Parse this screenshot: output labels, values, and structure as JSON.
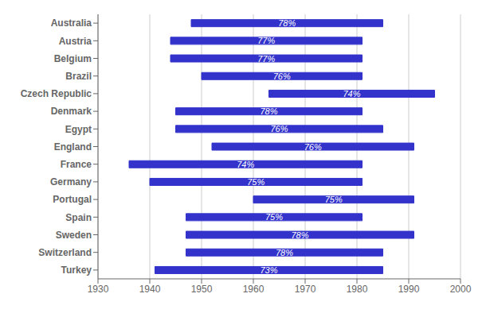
{
  "chart_data": {
    "type": "bar",
    "orientation": "horizontal",
    "categories": [
      "Australia",
      "Austria",
      "Belgium",
      "Brazil",
      "Czech Republic",
      "Denmark",
      "Egypt",
      "England",
      "France",
      "Germany",
      "Portugal",
      "Spain",
      "Sweden",
      "Switzerland",
      "Turkey"
    ],
    "starts": [
      1948,
      1944,
      1944,
      1950,
      1963,
      1945,
      1945,
      1952,
      1936,
      1940,
      1960,
      1947,
      1947,
      1947,
      1941
    ],
    "ends": [
      1985,
      1981,
      1981,
      1981,
      1995,
      1981,
      1985,
      1991,
      1981,
      1981,
      1991,
      1981,
      1991,
      1985,
      1985
    ],
    "bar_labels": [
      "78%",
      "77%",
      "77%",
      "76%",
      "74%",
      "78%",
      "76%",
      "76%",
      "74%",
      "75%",
      "75%",
      "75%",
      "78%",
      "78%",
      "73%"
    ],
    "color": "#3333cc",
    "xlim": [
      1930,
      2000
    ],
    "xticks": [
      1930,
      1940,
      1950,
      1960,
      1970,
      1980,
      1990,
      2000
    ],
    "grid": true
  }
}
